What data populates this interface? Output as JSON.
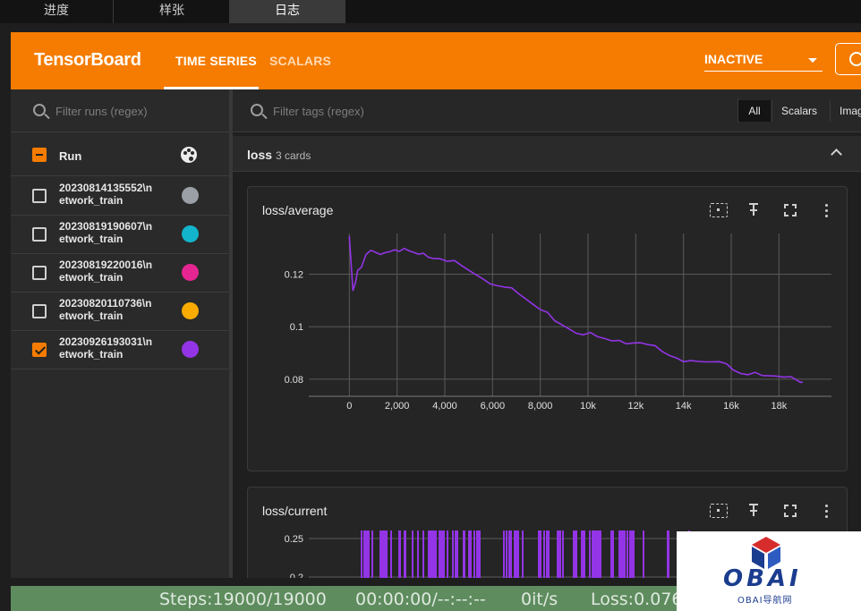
{
  "window_tabs": [
    "进度",
    "样张",
    "日志"
  ],
  "active_window_tab": "日志",
  "header": {
    "brand": "TensorBoard",
    "tabs": [
      "TIME SERIES",
      "SCALARS"
    ],
    "active_tab": "TIME SERIES",
    "reload_status": "INACTIVE",
    "accent_color": "#f57c00"
  },
  "sidebar": {
    "filter_placeholder": "Filter runs (regex)",
    "run_header": "Run",
    "runs": [
      {
        "name": "20230814135552\\n etwork_train",
        "color": "#9aa0a6",
        "checked": false
      },
      {
        "name": "20230819190607\\n etwork_train",
        "color": "#12b5cb",
        "checked": false
      },
      {
        "name": "20230819220016\\n etwork_train",
        "color": "#e52592",
        "checked": false
      },
      {
        "name": "20230820110736\\n etwork_train",
        "color": "#f9ab00",
        "checked": false
      },
      {
        "name": "20230926193031\\n etwork_train",
        "color": "#9334e6",
        "checked": true
      }
    ]
  },
  "main": {
    "tag_filter_placeholder": "Filter tags (regex)",
    "type_filters": [
      "All",
      "Scalars",
      "Imag"
    ],
    "group": {
      "name": "loss",
      "count": "3 cards"
    },
    "cards": [
      {
        "title": "loss/average"
      },
      {
        "title": "loss/current"
      }
    ]
  },
  "chart_data": [
    {
      "type": "line",
      "title": "loss/average",
      "xlabel": "",
      "ylabel": "",
      "x_ticks": [
        "0",
        "2,000",
        "4,000",
        "6,000",
        "8,000",
        "10k",
        "12k",
        "14k",
        "16k",
        "18k"
      ],
      "y_ticks": [
        "0.08",
        "0.1",
        "0.12"
      ],
      "xlim": [
        -1700,
        20200
      ],
      "ylim": [
        0.0735,
        0.1355
      ],
      "series": [
        {
          "color": "#9334e6",
          "x": [
            0,
            150,
            250,
            350,
            500,
            700,
            900,
            1100,
            1300,
            1500,
            1700,
            1900,
            2100,
            2300,
            2500,
            2700,
            2900,
            3100,
            3300,
            3500,
            3800,
            4100,
            4400,
            4700,
            5000,
            5300,
            5600,
            5900,
            6200,
            6500,
            6800,
            7100,
            7400,
            7700,
            8000,
            8300,
            8600,
            8900,
            9200,
            9500,
            9800,
            10100,
            10400,
            10700,
            11000,
            11300,
            11600,
            11900,
            12200,
            12500,
            12800,
            13100,
            13400,
            13700,
            14000,
            14300,
            14600,
            14900,
            15200,
            15500,
            15800,
            16100,
            16400,
            16700,
            17000,
            17300,
            17600,
            17900,
            18200,
            18500,
            18700,
            18900,
            19000
          ],
          "y": [
            0.1345,
            0.1138,
            0.1165,
            0.1215,
            0.1226,
            0.1275,
            0.1291,
            0.1283,
            0.1275,
            0.1282,
            0.1286,
            0.1293,
            0.1287,
            0.1298,
            0.1289,
            0.1283,
            0.1276,
            0.128,
            0.1265,
            0.126,
            0.1259,
            0.1249,
            0.1252,
            0.1233,
            0.1215,
            0.1198,
            0.1182,
            0.1163,
            0.1156,
            0.1151,
            0.1148,
            0.1125,
            0.1105,
            0.1085,
            0.1065,
            0.1055,
            0.1023,
            0.1008,
            0.0992,
            0.0975,
            0.0969,
            0.0978,
            0.0962,
            0.0955,
            0.0946,
            0.0948,
            0.0935,
            0.0938,
            0.0939,
            0.0932,
            0.0928,
            0.0906,
            0.0891,
            0.0881,
            0.0867,
            0.0871,
            0.0868,
            0.0866,
            0.0866,
            0.0867,
            0.0859,
            0.0834,
            0.0822,
            0.0817,
            0.0826,
            0.0814,
            0.0813,
            0.0812,
            0.0808,
            0.081,
            0.0799,
            0.0788,
            0.0789
          ]
        }
      ]
    },
    {
      "type": "bar",
      "title": "loss/current",
      "xlabel": "",
      "ylabel": "",
      "y_ticks": [
        "0.2",
        "0.25"
      ],
      "note_visible": "chart partially visible, clipped at bottom"
    }
  ],
  "statusbar": {
    "steps": "Steps:19000/19000",
    "time": "00:00:00/--:--:--",
    "rate": "0it/s",
    "loss": "Loss:0.076"
  },
  "watermark": {
    "word": "OBAI",
    "sub": "OBAI导航网"
  }
}
